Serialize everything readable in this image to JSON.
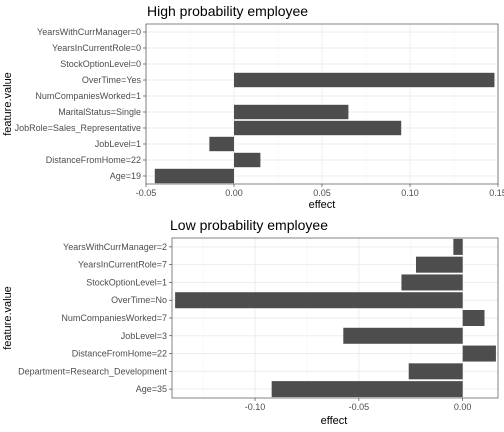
{
  "chart_data": [
    {
      "type": "bar",
      "orientation": "horizontal",
      "title": "High probability employee",
      "xlabel": "effect",
      "ylabel": "feature.value",
      "xlim": [
        -0.05,
        0.15
      ],
      "xticks": [
        -0.05,
        0.0,
        0.05,
        0.1,
        0.15
      ],
      "xtick_labels": [
        "-0.05",
        "0.00",
        "0.05",
        "0.10",
        "0.15"
      ],
      "grid": true,
      "categories": [
        "YearsWithCurrManager=0",
        "YearsInCurrentRole=0",
        "StockOptionLevel=0",
        "OverTime=Yes",
        "NumCompaniesWorked=1",
        "MaritalStatus=Single",
        "JobRole=Sales_Representative",
        "JobLevel=1",
        "DistanceFromHome=22",
        "Age=19"
      ],
      "values": [
        0.0,
        0.0,
        0.0,
        0.148,
        0.0,
        0.065,
        0.095,
        -0.014,
        0.015,
        -0.045
      ],
      "bar_color": "#4d4d4d"
    },
    {
      "type": "bar",
      "orientation": "horizontal",
      "title": "Low probability employee",
      "xlabel": "effect",
      "ylabel": "feature.value",
      "xlim": [
        -0.14,
        0.017
      ],
      "xticks": [
        -0.1,
        -0.05,
        0.0
      ],
      "xtick_labels": [
        "-0.10",
        "-0.05",
        "0.00"
      ],
      "grid": true,
      "categories": [
        "YearsWithCurrManager=2",
        "YearsInCurrentRole=7",
        "StockOptionLevel=1",
        "OverTime=No",
        "NumCompaniesWorked=7",
        "JobLevel=3",
        "DistanceFromHome=22",
        "Department=Research_Development",
        "Age=35"
      ],
      "values": [
        -0.0045,
        -0.0225,
        -0.0295,
        -0.1385,
        0.0105,
        -0.0575,
        0.016,
        -0.026,
        -0.092
      ],
      "bar_color": "#4d4d4d"
    }
  ]
}
